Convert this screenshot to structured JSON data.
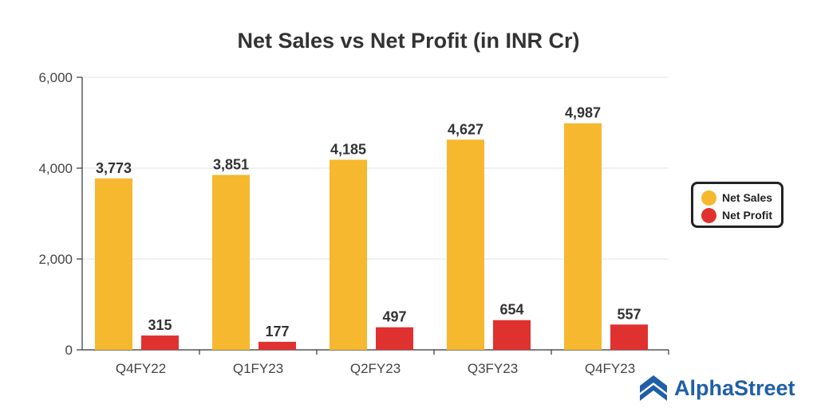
{
  "chart_data": {
    "type": "bar",
    "title": "Net Sales vs Net Profit (in INR Cr)",
    "categories": [
      "Q4FY22",
      "Q1FY23",
      "Q2FY23",
      "Q3FY23",
      "Q4FY23"
    ],
    "series": [
      {
        "name": "Net Sales",
        "color": "#f5b82e",
        "values": [
          3773,
          3851,
          4185,
          4627,
          4987
        ],
        "labels": [
          "3,773",
          "3,851",
          "4,185",
          "4,627",
          "4,987"
        ]
      },
      {
        "name": "Net Profit",
        "color": "#e03131",
        "values": [
          315,
          177,
          497,
          654,
          557
        ],
        "labels": [
          "315",
          "177",
          "497",
          "654",
          "557"
        ]
      }
    ],
    "ylim": [
      0,
      6000
    ],
    "yticks": [
      0,
      2000,
      4000,
      6000
    ],
    "ytick_labels": [
      "0",
      "2,000",
      "4,000",
      "6,000"
    ],
    "xlabel": "",
    "ylabel": "",
    "grid": true,
    "legend_position": "right"
  },
  "branding": {
    "name": "AlphaStreet",
    "icon": "alphastreet-logo-icon",
    "color": "#1f5fa8"
  }
}
